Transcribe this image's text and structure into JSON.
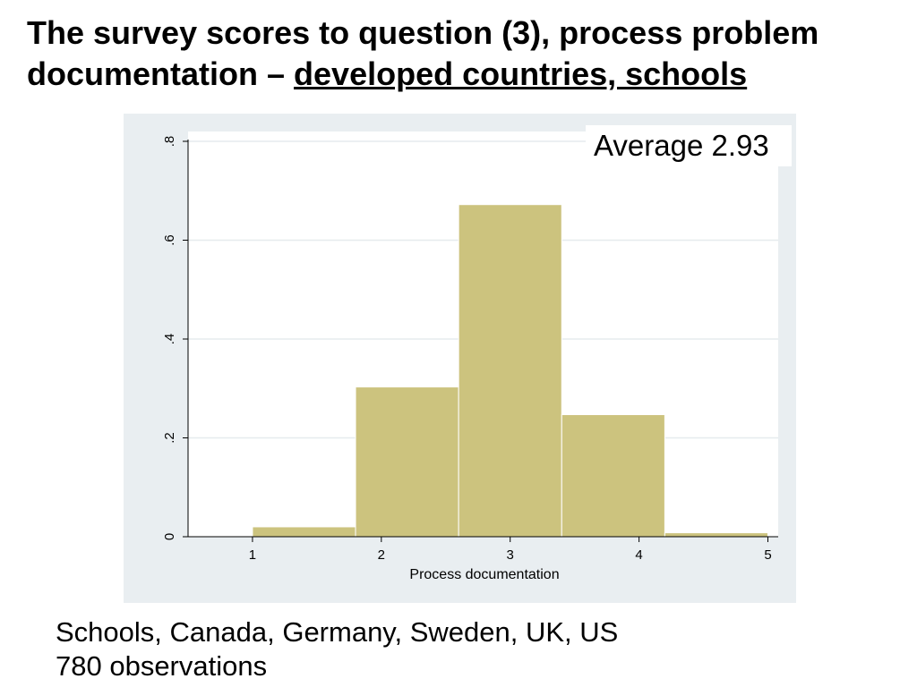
{
  "title": {
    "line1": "The survey scores to question (3), process problem",
    "line2_plain": "documentation – ",
    "line2_underlined": "developed countries, schools"
  },
  "annotation": "Average 2.93",
  "footer": {
    "line1": "Schools, Canada, Germany, Sweden, UK, US",
    "line2": "780 observations"
  },
  "colors": {
    "bar_fill": "#ccc37e",
    "plot_bg": "#ffffff",
    "frame_bg": "#e9eef1",
    "gridline": "#e6ebee",
    "axis": "#000000"
  },
  "chart_data": {
    "type": "bar",
    "subtype": "histogram",
    "xlabel": "Process documentation",
    "ylabel": "",
    "bins": [
      {
        "x0": 1.0,
        "x1": 1.8,
        "density": 0.02
      },
      {
        "x0": 1.8,
        "x1": 2.6,
        "density": 0.303
      },
      {
        "x0": 2.6,
        "x1": 3.4,
        "density": 0.672
      },
      {
        "x0": 3.4,
        "x1": 4.2,
        "density": 0.247
      },
      {
        "x0": 4.2,
        "x1": 5.0,
        "density": 0.008
      }
    ],
    "xlim": [
      0.5,
      5.08
    ],
    "ylim": [
      0,
      0.8
    ],
    "xticks": [
      1,
      2,
      3,
      4,
      5
    ],
    "xtick_labels": [
      "1",
      "2",
      "3",
      "4",
      "5"
    ],
    "yticks": [
      0,
      0.2,
      0.4,
      0.6,
      0.8
    ],
    "ytick_labels": [
      "0",
      ".2",
      ".4",
      ".6",
      ".8"
    ],
    "grid": true
  }
}
